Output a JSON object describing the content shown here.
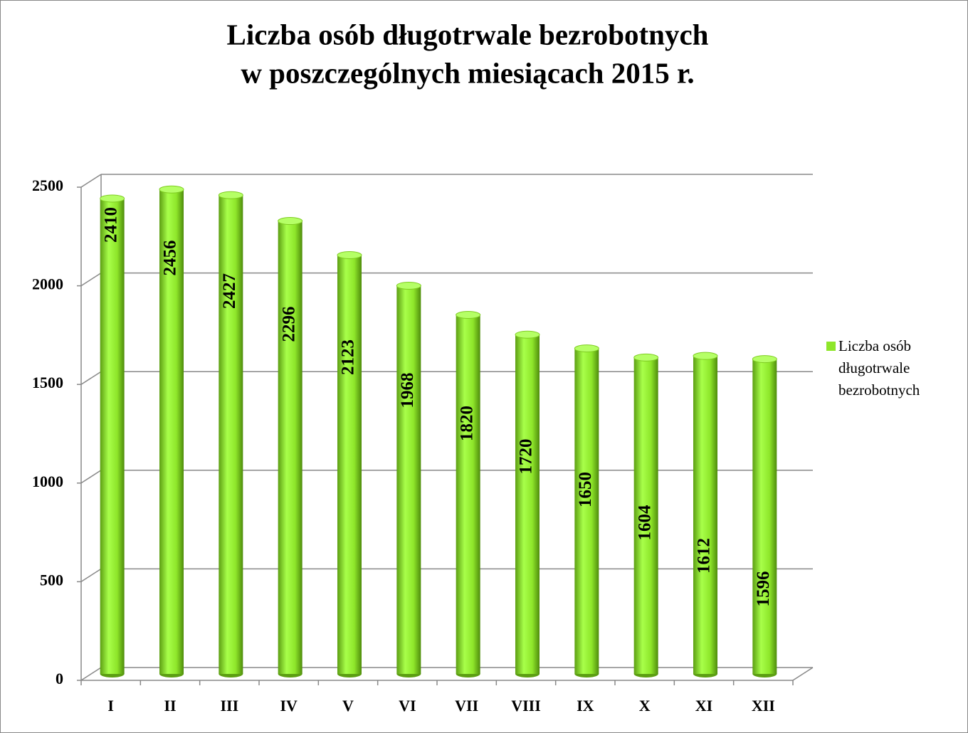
{
  "chart_data": {
    "type": "bar3d",
    "title": [
      "Liczba osób długotrwale bezrobotnych",
      "w poszczególnych miesiącach 2015 r."
    ],
    "categories": [
      "I",
      "II",
      "III",
      "IV",
      "V",
      "VI",
      "VII",
      "VIII",
      "IX",
      "X",
      "XI",
      "XII"
    ],
    "series": [
      {
        "name": "Liczba osób długotrwale bezrobotnych",
        "color": "#8ee62a",
        "values": [
          2410,
          2456,
          2427,
          2296,
          2123,
          1968,
          1820,
          1720,
          1650,
          1604,
          1612,
          1596
        ]
      }
    ],
    "ylim": [
      0,
      2500
    ],
    "yticks": [
      0,
      500,
      1000,
      1500,
      2000,
      2500
    ],
    "grid": true,
    "legend": "right"
  }
}
